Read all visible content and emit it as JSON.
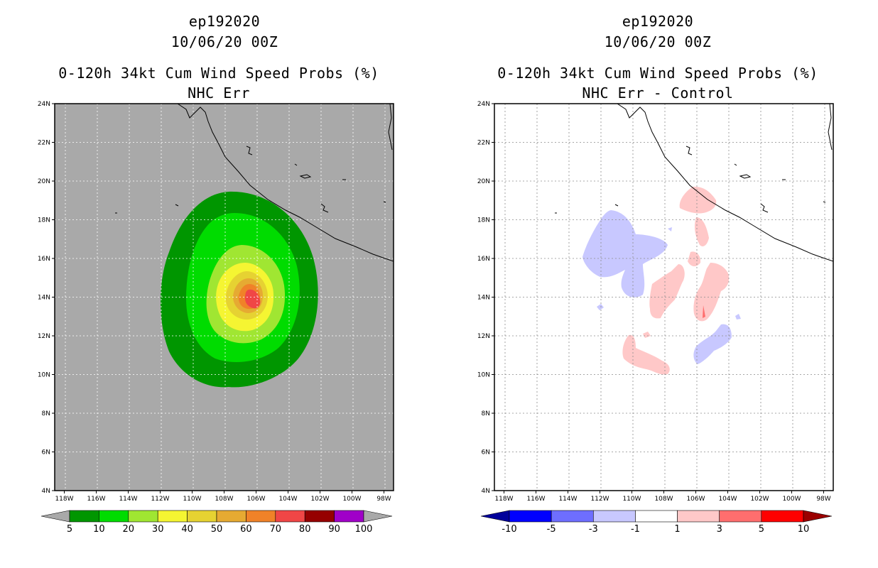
{
  "left_panel": {
    "storm_id": "ep192020",
    "datetime": "10/06/20 00Z",
    "title": "0-120h 34kt Cum Wind Speed Probs (%)",
    "subtitle": "NHC Err",
    "colorbar": {
      "labels": [
        "5",
        "10",
        "20",
        "30",
        "40",
        "50",
        "60",
        "70",
        "80",
        "90",
        "100"
      ],
      "colors": [
        "#a9a9a9",
        "#009600",
        "#00dc00",
        "#a0e632",
        "#f5f532",
        "#e6d232",
        "#e6aa32",
        "#f08228",
        "#f04646",
        "#960000",
        "#a000c8",
        "#a9a9a9"
      ]
    }
  },
  "right_panel": {
    "storm_id": "ep192020",
    "datetime": "10/06/20 00Z",
    "title": "0-120h 34kt Cum Wind Speed Probs (%)",
    "subtitle": "NHC Err - Control",
    "colorbar": {
      "labels": [
        "-10",
        "-5",
        "-3",
        "-1",
        "1",
        "3",
        "5",
        "10"
      ],
      "colors": [
        "#00009b",
        "#0000ff",
        "#6e6eff",
        "#c8c8ff",
        "#ffffff",
        "#ffc8c8",
        "#ff6e6e",
        "#ff0000",
        "#9b0000"
      ]
    }
  },
  "axes": {
    "lat_labels": [
      "4N",
      "6N",
      "8N",
      "10N",
      "12N",
      "14N",
      "16N",
      "18N",
      "20N",
      "22N",
      "24N"
    ],
    "lon_labels": [
      "118W",
      "116W",
      "114W",
      "112W",
      "110W",
      "108W",
      "106W",
      "104W",
      "102W",
      "100W",
      "98W"
    ],
    "lat_range": [
      4,
      24
    ],
    "lon_range": [
      -118.6,
      -97.4
    ]
  }
}
